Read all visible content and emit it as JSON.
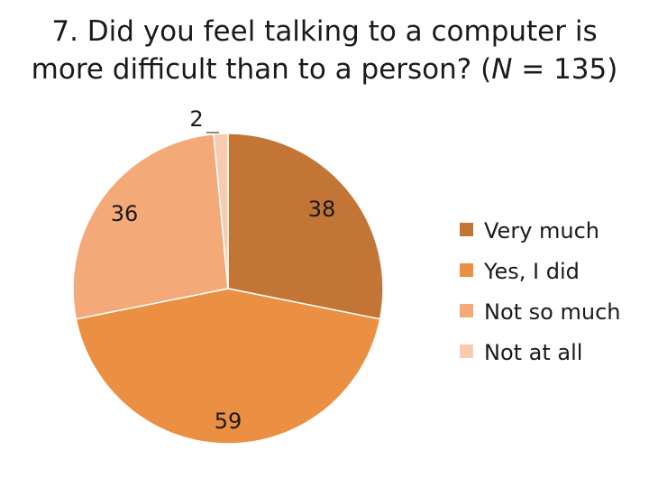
{
  "title": {
    "line1": "7. Did you feel talking to a computer is",
    "line2_prefix": "more difficult than to a person? (",
    "line2_n": "N",
    "line2_suffix": " = 135)"
  },
  "chart_data": {
    "type": "pie",
    "title": "7. Did you feel talking to a computer is more difficult than to a person? (N = 135)",
    "categories": [
      "Very much",
      "Yes, I did",
      "Not so much",
      "Not at all"
    ],
    "values": [
      38,
      59,
      36,
      2
    ],
    "colors": [
      "#c27534",
      "#eb8f43",
      "#f4a978",
      "#f8cbb0"
    ],
    "legend_position": "right",
    "data_labels": true
  }
}
